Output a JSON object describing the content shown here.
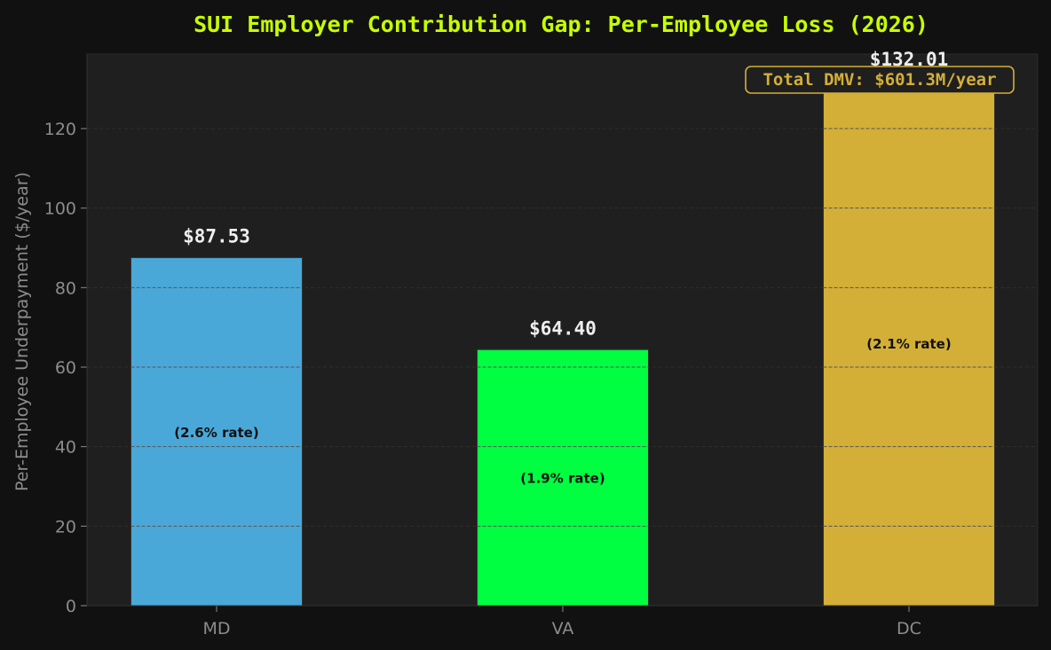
{
  "chart_data": {
    "type": "bar",
    "title": "SUI Employer Contribution Gap: Per-Employee Loss (2026)",
    "xlabel": "",
    "ylabel": "Per-Employee Underpayment ($/year)",
    "categories": [
      "MD",
      "VA",
      "DC"
    ],
    "values": [
      87.53,
      64.4,
      132.01
    ],
    "value_labels": [
      "$87.53",
      "$64.40",
      "$132.01"
    ],
    "rate_labels": [
      "(2.6% rate)",
      "(1.9% rate)",
      "(2.1% rate)"
    ],
    "bar_colors": [
      "#4aa8d8",
      "#00ff41",
      "#d4af37"
    ],
    "ylim": [
      0,
      140
    ],
    "yticks": [
      0,
      20,
      40,
      60,
      80,
      100,
      120
    ],
    "grid": true,
    "annotation": "Total DMV: $601.3M/year"
  },
  "colors": {
    "page_bg": "#111111",
    "plot_bg": "#1f1f1f",
    "title": "#c8ff00",
    "annotation": "#d4af37",
    "tick_text": "#8c8c8c",
    "value_text": "#eeeeee",
    "rate_text": "#111111"
  }
}
